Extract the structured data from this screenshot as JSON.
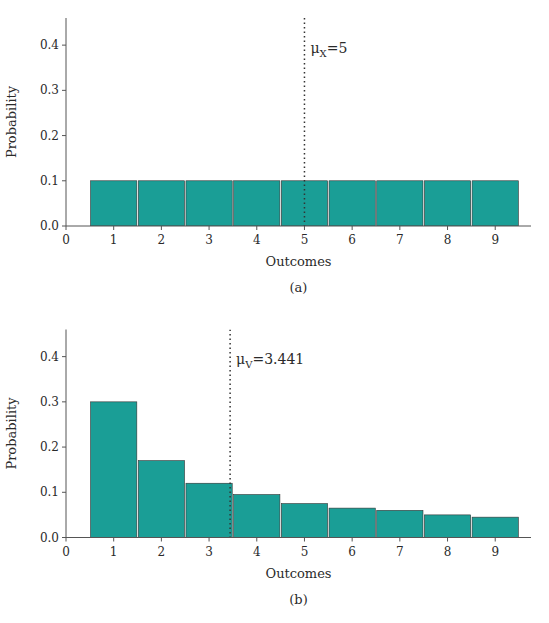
{
  "chart_data": [
    {
      "type": "bar",
      "subtitle": "(a)",
      "x_label": "Outcomes",
      "y_label": "Probability",
      "x": [
        1,
        2,
        3,
        4,
        5,
        6,
        7,
        8,
        9
      ],
      "values": [
        0.1,
        0.1,
        0.1,
        0.1,
        0.1,
        0.1,
        0.1,
        0.1,
        0.1
      ],
      "color": "#1a9e96",
      "annotations": [
        {
          "text": "μX=5",
          "x": 5.0
        }
      ],
      "xlim": [
        0,
        9.75
      ],
      "ylim": [
        0,
        0.46
      ],
      "xticks": [
        0,
        1,
        2,
        3,
        4,
        5,
        6,
        7,
        8,
        9
      ],
      "yticks": [
        {
          "value": 0.0,
          "label": "0.0"
        },
        0.1,
        0.2,
        0.3,
        0.4
      ],
      "grid": false
    },
    {
      "type": "bar",
      "subtitle": "(b)",
      "x_label": "Outcomes",
      "y_label": "Probability",
      "x": [
        1,
        2,
        3,
        4,
        5,
        6,
        7,
        8,
        9
      ],
      "values": [
        0.3,
        0.17,
        0.12,
        0.095,
        0.075,
        0.065,
        0.06,
        0.05,
        0.045
      ],
      "color": "#1a9e96",
      "annotations": [
        {
          "text": "μV=3.441",
          "x": 3.441
        }
      ],
      "xlim": [
        0,
        9.75
      ],
      "ylim": [
        0,
        0.46
      ],
      "xticks": [
        0,
        1,
        2,
        3,
        4,
        5,
        6,
        7,
        8,
        9
      ],
      "yticks": [
        {
          "value": 0.0,
          "label": "0.0"
        },
        0.1,
        0.2,
        0.3,
        0.4
      ],
      "grid": false
    }
  ]
}
